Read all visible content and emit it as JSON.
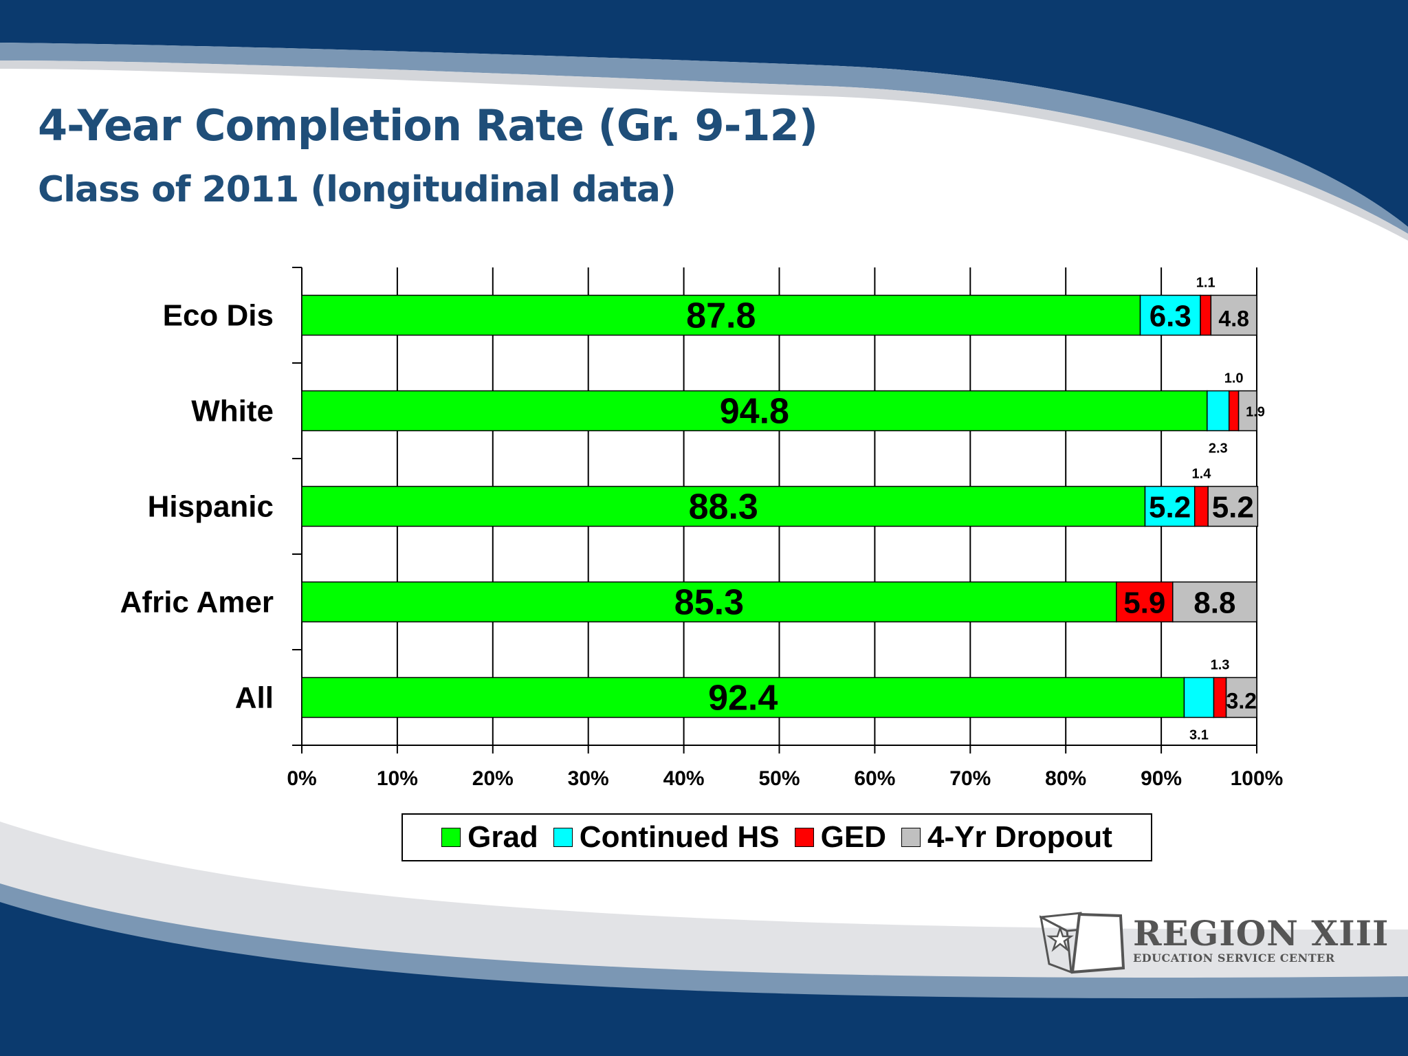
{
  "colors": {
    "navy": "#0b3a6e",
    "steel": "#6f8fae",
    "title": "#1f4e79"
  },
  "slide": {
    "title": "4-Year Completion Rate (Gr. 9-12)",
    "subtitle": "Class of 2011 (longitudinal data)"
  },
  "logo": {
    "name": "REGION XIII",
    "subtitle": "EDUCATION SERVICE CENTER",
    "icon": "texas-star-icon"
  },
  "chart_data": {
    "type": "bar",
    "orientation": "horizontal",
    "stacked": true,
    "categories": [
      "Eco Dis",
      "White",
      "Hispanic",
      "Afric Amer",
      "All"
    ],
    "series": [
      {
        "name": "Grad",
        "color": "#00ff00",
        "values": [
          87.8,
          94.8,
          88.3,
          85.3,
          92.4
        ]
      },
      {
        "name": "Continued HS",
        "color": "#00ffff",
        "values": [
          6.3,
          2.3,
          5.2,
          0,
          3.1
        ]
      },
      {
        "name": "GED",
        "color": "#ff0000",
        "values": [
          1.1,
          1.0,
          1.4,
          5.9,
          1.3
        ]
      },
      {
        "name": "4-Yr Dropout",
        "color": "#c0c0c0",
        "values": [
          4.8,
          1.9,
          5.2,
          8.8,
          3.2
        ]
      }
    ],
    "x_ticks": [
      "0%",
      "10%",
      "20%",
      "30%",
      "40%",
      "50%",
      "60%",
      "70%",
      "80%",
      "90%",
      "100%"
    ],
    "xlim": [
      0,
      100
    ],
    "grid": "vertical",
    "legend_position": "bottom"
  }
}
